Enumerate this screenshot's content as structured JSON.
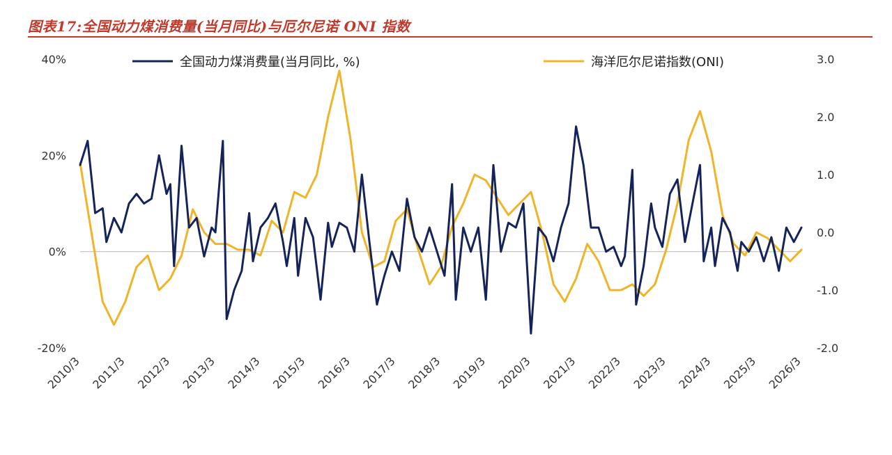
{
  "figure": {
    "title": "图表17:全国动力煤消费量(当月同比)与厄尔尼诺 ONI 指数"
  },
  "chart_data": {
    "type": "line",
    "x_tick_labels": [
      "2010/3",
      "2011/3",
      "2012/3",
      "2013/3",
      "2014/3",
      "2015/3",
      "2016/3",
      "2017/3",
      "2018/3",
      "2019/3",
      "2020/3",
      "2021/3",
      "2022/3",
      "2023/3",
      "2024/3",
      "2025/3",
      "2026/3"
    ],
    "x_start": "2010-03",
    "x_end": "2026-03",
    "y_left": {
      "ticks": [
        "-20%",
        "0%",
        "20%",
        "40%"
      ],
      "values": [
        -20,
        0,
        20,
        40
      ],
      "lim": [
        -20,
        40
      ],
      "unit": "%"
    },
    "y_right": {
      "ticks": [
        "-2.0",
        "-1.0",
        "0.0",
        "1.0",
        "2.0",
        "3.0"
      ],
      "values": [
        -2,
        -1,
        0,
        1,
        2,
        3
      ],
      "lim": [
        -2,
        3
      ]
    },
    "zero_line": true,
    "legend_position": "top",
    "series": [
      {
        "name": "全国动力煤消费量(当月同比, %)",
        "axis": "left",
        "color": "#14235a",
        "points": [
          [
            "2010-03",
            18
          ],
          [
            "2010-05",
            23
          ],
          [
            "2010-07",
            8
          ],
          [
            "2010-09",
            9
          ],
          [
            "2010-10",
            2
          ],
          [
            "2010-12",
            7
          ],
          [
            "2011-02",
            4
          ],
          [
            "2011-04",
            10
          ],
          [
            "2011-06",
            12
          ],
          [
            "2011-08",
            10
          ],
          [
            "2011-10",
            11
          ],
          [
            "2011-12",
            20
          ],
          [
            "2012-02",
            12
          ],
          [
            "2012-03",
            14
          ],
          [
            "2012-04",
            -3
          ],
          [
            "2012-06",
            22
          ],
          [
            "2012-08",
            5
          ],
          [
            "2012-10",
            7
          ],
          [
            "2012-12",
            -1
          ],
          [
            "2013-02",
            5
          ],
          [
            "2013-03",
            4
          ],
          [
            "2013-05",
            23
          ],
          [
            "2013-06",
            -14
          ],
          [
            "2013-08",
            -8
          ],
          [
            "2013-10",
            -4
          ],
          [
            "2013-12",
            8
          ],
          [
            "2014-01",
            -2
          ],
          [
            "2014-03",
            5
          ],
          [
            "2014-05",
            7
          ],
          [
            "2014-07",
            10
          ],
          [
            "2014-09",
            2
          ],
          [
            "2014-10",
            -3
          ],
          [
            "2014-12",
            7
          ],
          [
            "2015-01",
            -5
          ],
          [
            "2015-03",
            7
          ],
          [
            "2015-05",
            3
          ],
          [
            "2015-07",
            -10
          ],
          [
            "2015-09",
            6
          ],
          [
            "2015-10",
            1
          ],
          [
            "2015-12",
            6
          ],
          [
            "2016-02",
            5
          ],
          [
            "2016-04",
            0
          ],
          [
            "2016-06",
            16
          ],
          [
            "2016-08",
            2
          ],
          [
            "2016-10",
            -11
          ],
          [
            "2016-12",
            -5
          ],
          [
            "2017-02",
            0
          ],
          [
            "2017-04",
            -4
          ],
          [
            "2017-06",
            11
          ],
          [
            "2017-08",
            3
          ],
          [
            "2017-10",
            0
          ],
          [
            "2017-12",
            5
          ],
          [
            "2018-02",
            0
          ],
          [
            "2018-04",
            -5
          ],
          [
            "2018-06",
            14
          ],
          [
            "2018-07",
            -10
          ],
          [
            "2018-09",
            5
          ],
          [
            "2018-11",
            0
          ],
          [
            "2019-01",
            5
          ],
          [
            "2019-03",
            -10
          ],
          [
            "2019-05",
            18
          ],
          [
            "2019-07",
            0
          ],
          [
            "2019-09",
            6
          ],
          [
            "2019-11",
            5
          ],
          [
            "2020-01",
            10
          ],
          [
            "2020-03",
            -17
          ],
          [
            "2020-05",
            5
          ],
          [
            "2020-07",
            3
          ],
          [
            "2020-09",
            -2
          ],
          [
            "2020-11",
            5
          ],
          [
            "2021-01",
            10
          ],
          [
            "2021-03",
            26
          ],
          [
            "2021-05",
            18
          ],
          [
            "2021-07",
            5
          ],
          [
            "2021-09",
            5
          ],
          [
            "2021-11",
            0
          ],
          [
            "2022-01",
            1
          ],
          [
            "2022-03",
            -3
          ],
          [
            "2022-04",
            -1
          ],
          [
            "2022-06",
            17
          ],
          [
            "2022-07",
            -11
          ],
          [
            "2022-09",
            -3
          ],
          [
            "2022-11",
            10
          ],
          [
            "2022-12",
            5
          ],
          [
            "2023-02",
            1
          ],
          [
            "2023-04",
            12
          ],
          [
            "2023-06",
            15
          ],
          [
            "2023-08",
            2
          ],
          [
            "2023-10",
            10
          ],
          [
            "2023-12",
            18
          ],
          [
            "2024-01",
            -2
          ],
          [
            "2024-03",
            5
          ],
          [
            "2024-04",
            -3
          ],
          [
            "2024-06",
            7
          ],
          [
            "2024-08",
            4
          ],
          [
            "2024-10",
            -4
          ],
          [
            "2024-11",
            2
          ],
          [
            "2025-01",
            0
          ],
          [
            "2025-03",
            3
          ],
          [
            "2025-05",
            -2
          ],
          [
            "2025-07",
            3
          ],
          [
            "2025-09",
            -4
          ],
          [
            "2025-11",
            5
          ],
          [
            "2026-01",
            2
          ],
          [
            "2026-03",
            5
          ]
        ]
      },
      {
        "name": "海洋厄尔尼诺指数(ONI)",
        "axis": "right",
        "color": "#f0b428",
        "points": [
          [
            "2010-03",
            1.2
          ],
          [
            "2010-06",
            0.0
          ],
          [
            "2010-09",
            -1.2
          ],
          [
            "2010-12",
            -1.6
          ],
          [
            "2011-03",
            -1.2
          ],
          [
            "2011-06",
            -0.6
          ],
          [
            "2011-09",
            -0.4
          ],
          [
            "2011-12",
            -1.0
          ],
          [
            "2012-03",
            -0.8
          ],
          [
            "2012-06",
            -0.4
          ],
          [
            "2012-09",
            0.4
          ],
          [
            "2012-12",
            0.0
          ],
          [
            "2013-03",
            -0.2
          ],
          [
            "2013-06",
            -0.2
          ],
          [
            "2013-09",
            -0.3
          ],
          [
            "2013-12",
            -0.3
          ],
          [
            "2014-03",
            -0.4
          ],
          [
            "2014-06",
            0.2
          ],
          [
            "2014-09",
            0.0
          ],
          [
            "2014-12",
            0.7
          ],
          [
            "2015-03",
            0.6
          ],
          [
            "2015-06",
            1.0
          ],
          [
            "2015-09",
            2.0
          ],
          [
            "2015-12",
            2.8
          ],
          [
            "2016-03",
            1.6
          ],
          [
            "2016-06",
            0.0
          ],
          [
            "2016-09",
            -0.6
          ],
          [
            "2016-12",
            -0.5
          ],
          [
            "2017-03",
            0.2
          ],
          [
            "2017-06",
            0.4
          ],
          [
            "2017-09",
            -0.3
          ],
          [
            "2017-12",
            -0.9
          ],
          [
            "2018-03",
            -0.6
          ],
          [
            "2018-06",
            0.1
          ],
          [
            "2018-09",
            0.5
          ],
          [
            "2018-12",
            1.0
          ],
          [
            "2019-03",
            0.9
          ],
          [
            "2019-06",
            0.6
          ],
          [
            "2019-09",
            0.3
          ],
          [
            "2019-12",
            0.5
          ],
          [
            "2020-03",
            0.7
          ],
          [
            "2020-06",
            0.0
          ],
          [
            "2020-09",
            -0.9
          ],
          [
            "2020-12",
            -1.2
          ],
          [
            "2021-03",
            -0.8
          ],
          [
            "2021-06",
            -0.2
          ],
          [
            "2021-09",
            -0.5
          ],
          [
            "2021-12",
            -1.0
          ],
          [
            "2022-03",
            -1.0
          ],
          [
            "2022-06",
            -0.9
          ],
          [
            "2022-09",
            -1.1
          ],
          [
            "2022-12",
            -0.9
          ],
          [
            "2023-03",
            -0.3
          ],
          [
            "2023-06",
            0.5
          ],
          [
            "2023-09",
            1.6
          ],
          [
            "2023-12",
            2.1
          ],
          [
            "2024-03",
            1.4
          ],
          [
            "2024-06",
            0.3
          ],
          [
            "2024-09",
            -0.2
          ],
          [
            "2024-12",
            -0.4
          ],
          [
            "2025-03",
            0.0
          ],
          [
            "2025-06",
            -0.1
          ],
          [
            "2025-09",
            -0.3
          ],
          [
            "2025-12",
            -0.5
          ],
          [
            "2026-03",
            -0.3
          ]
        ]
      }
    ]
  }
}
